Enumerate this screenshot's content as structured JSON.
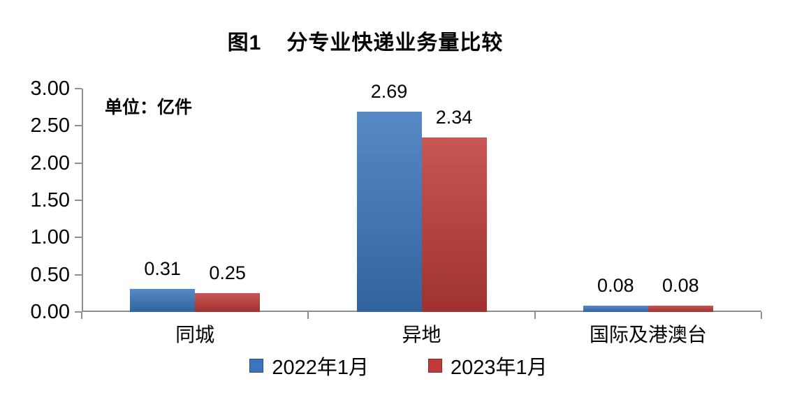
{
  "title": {
    "prefix": "图1",
    "text": "分专业快递业务量比较"
  },
  "chart_data": {
    "type": "bar",
    "title": "图1 分专业快递业务量比较",
    "unit_label": "单位：亿件",
    "categories": [
      "同城",
      "异地",
      "国际及港澳台"
    ],
    "series": [
      {
        "name": "2022年1月",
        "color": "#3B76BC",
        "values": [
          0.31,
          2.69,
          0.08
        ]
      },
      {
        "name": "2023年1月",
        "color": "#BE3B38",
        "values": [
          0.25,
          2.34,
          0.08
        ]
      }
    ],
    "value_labels": [
      [
        "0.31",
        "2.69",
        "0.08"
      ],
      [
        "0.25",
        "2.34",
        "0.08"
      ]
    ],
    "ylim": [
      0,
      3
    ],
    "ytick_step": 0.5,
    "ytick_labels": [
      "0.00",
      "0.50",
      "1.00",
      "1.50",
      "2.00",
      "2.50",
      "3.00"
    ],
    "grid": false,
    "legend_position": "bottom",
    "axis_color": "#8f8f8f"
  }
}
